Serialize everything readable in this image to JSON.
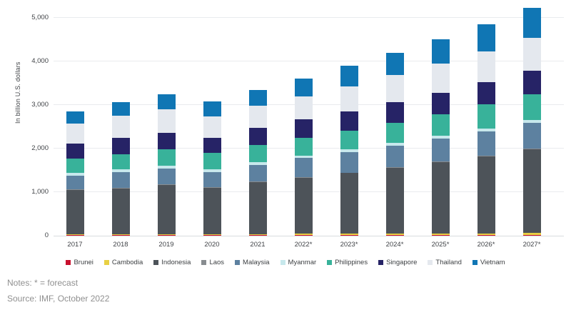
{
  "chart_data": {
    "type": "bar",
    "variant": "stacked",
    "title": "",
    "ylabel": "In billion U.S. dollars",
    "xlabel": "",
    "ylim": [
      0,
      5250
    ],
    "y_ticks": [
      0,
      1000,
      2000,
      3000,
      4000,
      5000
    ],
    "grid": true,
    "legend_position": "bottom",
    "categories": [
      "2017",
      "2018",
      "2019",
      "2020",
      "2021",
      "2022*",
      "2023*",
      "2024*",
      "2025*",
      "2026*",
      "2027*"
    ],
    "series": [
      {
        "name": "Brunei",
        "color": "#c8102e",
        "values": [
          12,
          14,
          13,
          12,
          14,
          18,
          17,
          16,
          16,
          16,
          16
        ]
      },
      {
        "name": "Cambodia",
        "color": "#e8d044",
        "values": [
          22,
          25,
          27,
          26,
          27,
          28,
          31,
          34,
          37,
          41,
          45
        ]
      },
      {
        "name": "Indonesia",
        "color": "#4d5359",
        "values": [
          1016,
          1042,
          1119,
          1059,
          1186,
          1289,
          1389,
          1506,
          1632,
          1769,
          1919
        ]
      },
      {
        "name": "Laos",
        "color": "#888c90",
        "values": [
          17,
          18,
          19,
          19,
          19,
          15,
          15,
          16,
          17,
          18,
          19
        ]
      },
      {
        "name": "Malaysia",
        "color": "#5d81a0",
        "values": [
          319,
          359,
          365,
          337,
          373,
          434,
          468,
          495,
          526,
          556,
          588
        ]
      },
      {
        "name": "Myanmar",
        "color": "#c7e8ec",
        "values": [
          61,
          67,
          69,
          81,
          65,
          60,
          62,
          65,
          67,
          70,
          72
        ]
      },
      {
        "name": "Philippines",
        "color": "#38b29a",
        "values": [
          329,
          347,
          377,
          362,
          394,
          402,
          426,
          462,
          502,
          547,
          597
        ]
      },
      {
        "name": "Singapore",
        "color": "#262366",
        "values": [
          343,
          377,
          376,
          345,
          397,
          424,
          447,
          470,
          493,
          516,
          539
        ]
      },
      {
        "name": "Thailand",
        "color": "#e4e8ee",
        "values": [
          456,
          507,
          544,
          500,
          506,
          535,
          581,
          623,
          663,
          704,
          746
        ]
      },
      {
        "name": "Vietnam",
        "color": "#1076b4",
        "values": [
          281,
          310,
          334,
          346,
          366,
          407,
          470,
          515,
          566,
          622,
          690
        ]
      }
    ]
  },
  "notes": "Notes: * = forecast",
  "source": "Source: IMF, October 2022"
}
